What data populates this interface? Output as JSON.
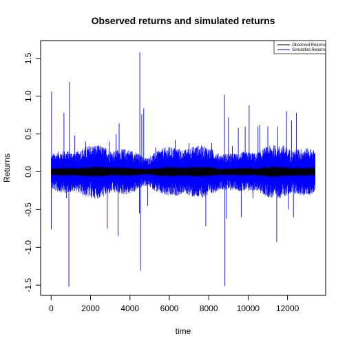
{
  "chart_data": {
    "type": "line",
    "title": "Observed returns and simulated returns",
    "xlabel": "time",
    "ylabel": "Returns",
    "xlim": [
      -535,
      13935
    ],
    "ylim": [
      -1.635,
      1.735
    ],
    "x_ticks": [
      0,
      2000,
      4000,
      6000,
      8000,
      10000,
      12000
    ],
    "x_tick_labels": [
      "0",
      "2000",
      "4000",
      "6000",
      "8000",
      "10000",
      "12000"
    ],
    "y_ticks": [
      -1.5,
      -1.0,
      -0.5,
      0.0,
      0.5,
      1.0,
      1.5
    ],
    "y_tick_labels": [
      "-1.5",
      "-1.0",
      "-0.5",
      "0.0",
      "0.5",
      "1.0",
      "1.5"
    ],
    "grid": false,
    "legend_position": "top-right",
    "n_points": 13400,
    "series": [
      {
        "name": "Observed Returns",
        "color": "#000000",
        "typical_amplitude": 0.02,
        "peaks": [
          {
            "x": 7500,
            "y": 0.04
          },
          {
            "x": 7700,
            "y": -0.05
          },
          {
            "x": 9000,
            "y": 0.04
          }
        ]
      },
      {
        "name": "Simulated Returns",
        "color": "#0000ff",
        "typical_amplitude": 0.1,
        "peaks": [
          {
            "x": 20,
            "y": 1.06
          },
          {
            "x": 10,
            "y": -0.76
          },
          {
            "x": 650,
            "y": 0.78
          },
          {
            "x": 780,
            "y": -0.35
          },
          {
            "x": 930,
            "y": 1.19
          },
          {
            "x": 900,
            "y": -1.52
          },
          {
            "x": 1200,
            "y": 0.48
          },
          {
            "x": 1750,
            "y": 0.4
          },
          {
            "x": 2850,
            "y": -0.75
          },
          {
            "x": 2950,
            "y": 0.4
          },
          {
            "x": 3300,
            "y": 0.5
          },
          {
            "x": 3400,
            "y": -0.85
          },
          {
            "x": 3450,
            "y": 0.64
          },
          {
            "x": 4480,
            "y": -0.55
          },
          {
            "x": 4500,
            "y": 1.58
          },
          {
            "x": 4540,
            "y": -1.31
          },
          {
            "x": 4600,
            "y": 0.76
          },
          {
            "x": 4700,
            "y": 0.84
          },
          {
            "x": 4900,
            "y": -0.45
          },
          {
            "x": 5300,
            "y": 0.32
          },
          {
            "x": 6300,
            "y": 0.42
          },
          {
            "x": 7000,
            "y": 0.38
          },
          {
            "x": 7850,
            "y": -0.72
          },
          {
            "x": 8150,
            "y": 0.38
          },
          {
            "x": 8800,
            "y": 1.02
          },
          {
            "x": 8820,
            "y": -1.51
          },
          {
            "x": 8900,
            "y": -0.62
          },
          {
            "x": 9000,
            "y": 0.72
          },
          {
            "x": 9200,
            "y": 0.34
          },
          {
            "x": 9500,
            "y": 0.58
          },
          {
            "x": 9650,
            "y": -0.6
          },
          {
            "x": 9850,
            "y": 0.6
          },
          {
            "x": 10050,
            "y": 0.88
          },
          {
            "x": 10250,
            "y": -0.35
          },
          {
            "x": 10500,
            "y": 0.6
          },
          {
            "x": 10600,
            "y": 0.62
          },
          {
            "x": 11000,
            "y": 0.6
          },
          {
            "x": 11450,
            "y": -0.93
          },
          {
            "x": 11500,
            "y": 0.6
          },
          {
            "x": 11800,
            "y": 0.35
          },
          {
            "x": 11950,
            "y": 0.8
          },
          {
            "x": 12050,
            "y": -0.5
          },
          {
            "x": 12200,
            "y": 0.68
          },
          {
            "x": 12300,
            "y": -0.6
          },
          {
            "x": 12450,
            "y": 0.78
          },
          {
            "x": 12900,
            "y": 0.25
          },
          {
            "x": 13200,
            "y": 0.22
          },
          {
            "x": 13350,
            "y": -0.25
          }
        ]
      }
    ]
  }
}
